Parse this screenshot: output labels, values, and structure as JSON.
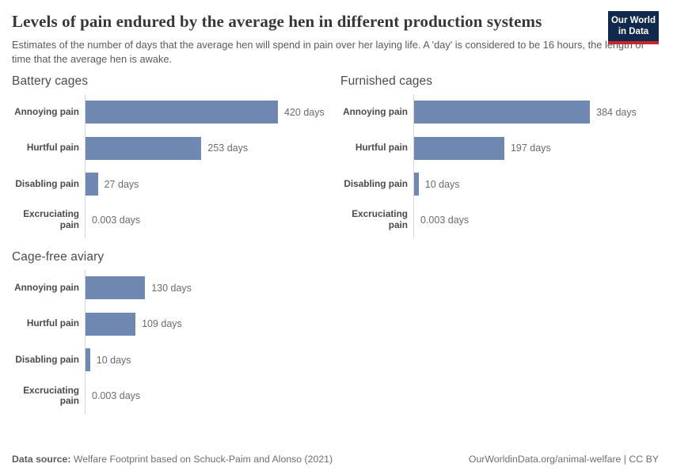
{
  "header": {
    "title": "Levels of pain endured by the average hen in different production systems",
    "subtitle": "Estimates of the number of days that the average hen will spend in pain over her laying life. A 'day' is considered to be 16 hours, the length of time that the average hen is awake.",
    "logo": {
      "line1": "Our World",
      "line2": "in Data"
    }
  },
  "chart_data": {
    "type": "bar",
    "orientation": "horizontal",
    "unit": "days",
    "categories": [
      "Annoying pain",
      "Hurtful pain",
      "Disabling pain",
      "Excruciating pain"
    ],
    "xlim": [
      0,
      420
    ],
    "grid": false,
    "legend": "none",
    "bar_color": "#6e88b1",
    "panels": [
      {
        "title": "Battery cages",
        "values": [
          420,
          253,
          27,
          0.003
        ],
        "labels": [
          "420 days",
          "253 days",
          "27 days",
          "0.003 days"
        ]
      },
      {
        "title": "Furnished cages",
        "values": [
          384,
          197,
          10,
          0.003
        ],
        "labels": [
          "384 days",
          "197 days",
          "10 days",
          "0.003 days"
        ]
      },
      {
        "title": "Cage-free aviary",
        "values": [
          130,
          109,
          10,
          0.003
        ],
        "labels": [
          "130 days",
          "109 days",
          "10 days",
          "0.003 days"
        ]
      }
    ]
  },
  "footer": {
    "source_label": "Data source:",
    "source_text": " Welfare Footprint based on Schuck-Paim and Alonso (2021)",
    "attribution": "OurWorldinData.org/animal-welfare | CC BY"
  }
}
